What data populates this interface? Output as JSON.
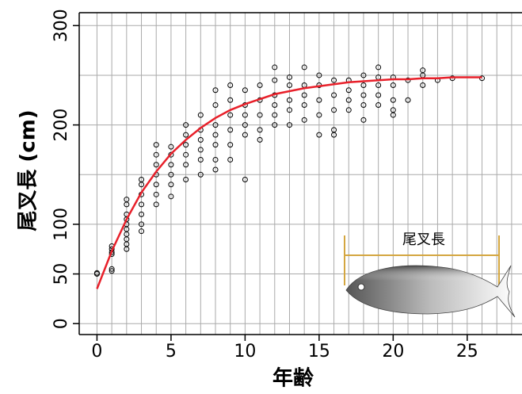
{
  "chart_data": {
    "type": "scatter",
    "x_label": "年齢",
    "y_label": "尾叉長 (cm)",
    "xlim": [
      -1.2,
      28.7
    ],
    "ylim": [
      -11,
      313
    ],
    "xticks": [
      0,
      5,
      10,
      15,
      20,
      25
    ],
    "yticks": [
      0,
      50,
      100,
      200,
      300
    ],
    "xgrid": [
      0,
      1,
      2,
      3,
      4,
      5,
      6,
      7,
      8,
      9,
      10,
      11,
      12,
      13,
      14,
      15,
      16,
      17,
      18,
      19,
      20,
      21,
      22,
      23,
      24,
      25,
      26,
      27,
      28
    ],
    "ygrid": [
      0,
      50,
      100,
      150,
      200,
      250,
      300
    ],
    "grid": true,
    "point_color": "#000000",
    "points": {
      "x": [
        0,
        0,
        1,
        1,
        1,
        1,
        1,
        1,
        2,
        2,
        2,
        2,
        2,
        2,
        2,
        2,
        2,
        2,
        3,
        3,
        3,
        3,
        3,
        3,
        3,
        4,
        4,
        4,
        4,
        4,
        4,
        4,
        5,
        5,
        5,
        5,
        5,
        5,
        6,
        6,
        6,
        6,
        6,
        6,
        7,
        7,
        7,
        7,
        7,
        7,
        8,
        8,
        8,
        8,
        8,
        8,
        8,
        9,
        9,
        9,
        9,
        9,
        9,
        10,
        10,
        10,
        10,
        10,
        10,
        11,
        11,
        11,
        11,
        11,
        12,
        12,
        12,
        12,
        12,
        12,
        13,
        13,
        13,
        13,
        13,
        14,
        14,
        14,
        14,
        14,
        15,
        15,
        15,
        15,
        15,
        16,
        16,
        16,
        16,
        16,
        17,
        17,
        17,
        17,
        18,
        18,
        18,
        18,
        18,
        19,
        19,
        19,
        19,
        19,
        20,
        20,
        20,
        20,
        20,
        21,
        21,
        22,
        22,
        22,
        23,
        24,
        26
      ],
      "y": [
        50,
        51,
        53,
        55,
        70,
        72,
        75,
        78,
        75,
        80,
        85,
        90,
        95,
        100,
        105,
        110,
        120,
        125,
        93,
        100,
        110,
        120,
        130,
        140,
        145,
        120,
        130,
        140,
        150,
        160,
        170,
        180,
        128,
        140,
        150,
        160,
        170,
        178,
        145,
        160,
        170,
        180,
        190,
        200,
        150,
        165,
        175,
        185,
        195,
        210,
        155,
        165,
        180,
        190,
        200,
        220,
        235,
        165,
        180,
        195,
        210,
        225,
        240,
        145,
        190,
        200,
        210,
        220,
        235,
        185,
        195,
        210,
        225,
        240,
        200,
        210,
        220,
        230,
        245,
        258,
        200,
        215,
        225,
        240,
        248,
        205,
        220,
        230,
        240,
        258,
        190,
        210,
        225,
        240,
        250,
        190,
        195,
        215,
        230,
        245,
        215,
        225,
        235,
        245,
        205,
        220,
        230,
        240,
        250,
        220,
        230,
        240,
        248,
        258,
        210,
        215,
        225,
        240,
        248,
        225,
        245,
        240,
        250,
        255,
        245,
        247,
        247
      ]
    },
    "curve": {
      "color": "#e8202a",
      "x": [
        0,
        1,
        2,
        3,
        4,
        5,
        6,
        7,
        8,
        9,
        10,
        11,
        12,
        13,
        14,
        15,
        16,
        17,
        18,
        19,
        20,
        21,
        22,
        23,
        24,
        25,
        26
      ],
      "y": [
        35,
        73,
        105,
        132,
        153,
        171,
        185,
        197,
        207,
        215,
        221,
        226,
        231,
        234,
        237,
        239,
        241,
        243,
        244,
        245,
        246,
        246,
        247,
        247,
        248,
        248,
        248
      ]
    },
    "inset_label": "尾叉長"
  }
}
